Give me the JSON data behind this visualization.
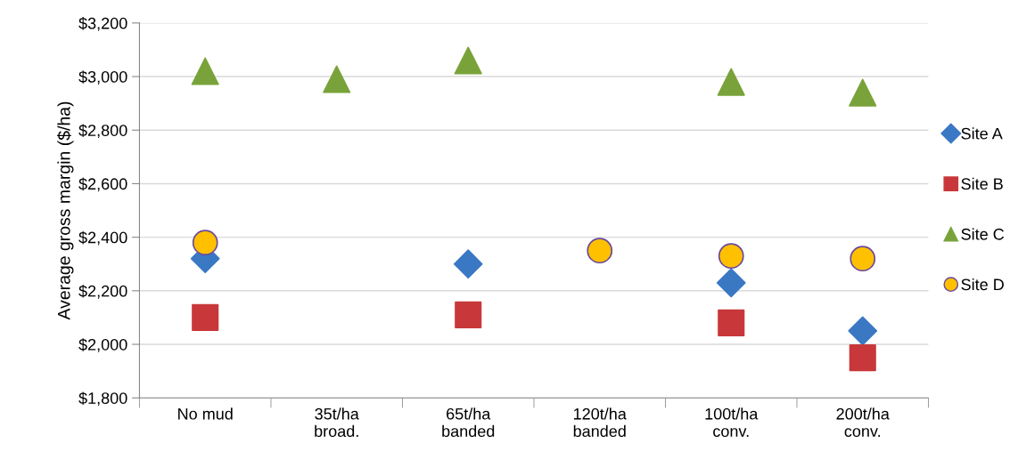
{
  "chart_data": {
    "type": "scatter",
    "ylabel": "Average gross margin ($/ha)",
    "categories": [
      "No mud",
      "35t/ha\nbroad.",
      "65t/ha\nbanded",
      "120t/ha\nbanded",
      "100t/ha\nconv.",
      "200t/ha\nconv."
    ],
    "series": [
      {
        "name": "Site A",
        "color": "#3a78c4",
        "marker": "diamond",
        "values": [
          2320,
          null,
          2300,
          null,
          2230,
          2050
        ]
      },
      {
        "name": "Site B",
        "color": "#c8383a",
        "marker": "square",
        "values": [
          2100,
          null,
          2110,
          null,
          2080,
          1950
        ]
      },
      {
        "name": "Site C",
        "color": "#79a33a",
        "marker": "triangle",
        "values": [
          3020,
          2990,
          3060,
          null,
          2980,
          2940
        ]
      },
      {
        "name": "Site D",
        "color": "#ffc000",
        "marker": "circle",
        "values": [
          2380,
          null,
          null,
          2350,
          2330,
          2320
        ]
      }
    ],
    "ylim": [
      1800,
      3200
    ],
    "yticks": [
      {
        "value": 1800,
        "label": "$1,800"
      },
      {
        "value": 2000,
        "label": "$2,000"
      },
      {
        "value": 2200,
        "label": "$2,200"
      },
      {
        "value": 2400,
        "label": "$2,400"
      },
      {
        "value": 2600,
        "label": "$2,600"
      },
      {
        "value": 2800,
        "label": "$2,800"
      },
      {
        "value": 3000,
        "label": "$3,000"
      },
      {
        "value": 3200,
        "label": "$3,200"
      }
    ],
    "grid": "y",
    "legend": "right"
  }
}
